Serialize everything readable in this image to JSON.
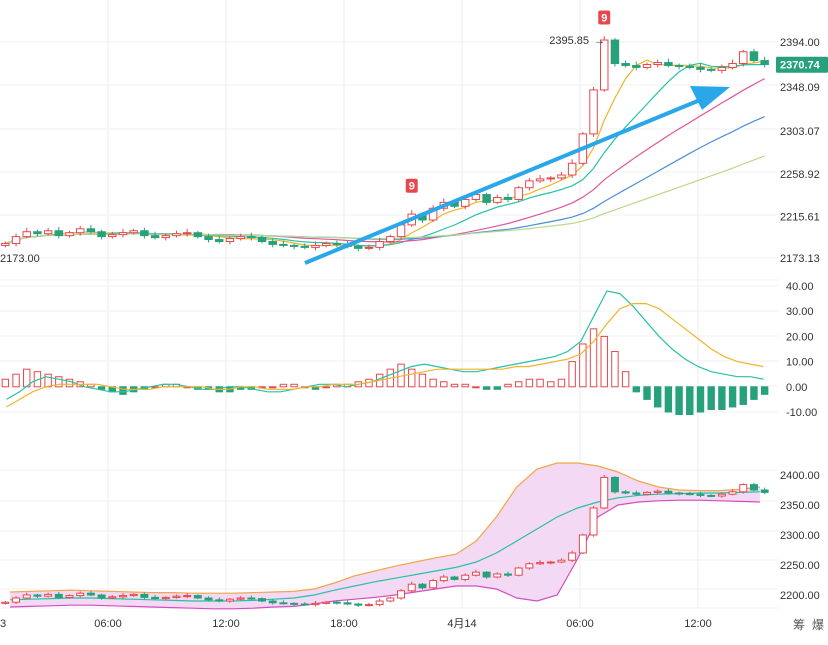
{
  "chart_data": [
    {
      "panel": "main",
      "type": "candlestick",
      "y_axis_ticks": [
        "2394.00",
        "2348.09",
        "2303.07",
        "2258.92",
        "2215.61",
        "2173.13"
      ],
      "y_axis_values": [
        2394.0,
        2348.09,
        2303.07,
        2258.92,
        2215.61,
        2173.13
      ],
      "current_price": "2370.74",
      "current_price_color": "#26a17b",
      "high_annotation": "2395.85",
      "low_annotation": "2173.00",
      "signal_markers": [
        "9",
        "9"
      ],
      "signal_color": "#e5484d",
      "trend_arrow_color": "#29a7e8",
      "up_color": "#e5484d",
      "down_color": "#26a17b",
      "ma_colors": [
        "#f0b429",
        "#26c2a5",
        "#e0559b",
        "#4a90d9",
        "#b9d98c"
      ],
      "close_series": [
        2188,
        2195,
        2200,
        2198,
        2201,
        2196,
        2199,
        2203,
        2200,
        2195,
        2197,
        2199,
        2201,
        2196,
        2194,
        2196,
        2198,
        2199,
        2195,
        2192,
        2190,
        2193,
        2195,
        2194,
        2190,
        2187,
        2186,
        2185,
        2184,
        2186,
        2188,
        2187,
        2185,
        2183,
        2184,
        2190,
        2195,
        2207,
        2218,
        2212,
        2224,
        2230,
        2226,
        2233,
        2238,
        2230,
        2235,
        2233,
        2245,
        2252,
        2254,
        2255,
        2258,
        2270,
        2300,
        2345,
        2396,
        2372,
        2370,
        2368,
        2371,
        2373,
        2370,
        2369,
        2368,
        2366,
        2365,
        2368,
        2372,
        2384,
        2375,
        2371
      ]
    },
    {
      "panel": "macd",
      "type": "histogram",
      "y_axis_ticks": [
        "40.00",
        "30.00",
        "20.00",
        "10.00",
        "0.00",
        "-10.00"
      ],
      "y_axis_values": [
        40,
        30,
        20,
        10,
        0,
        -10
      ],
      "line_colors": [
        "#26c2a5",
        "#f0b429"
      ],
      "histogram": [
        3,
        5,
        7,
        6,
        5,
        4,
        3,
        2,
        1,
        -1,
        -2,
        -3,
        -2,
        -1,
        0,
        1,
        1,
        0,
        -1,
        -1,
        -2,
        -2,
        -1,
        -1,
        0,
        0,
        1,
        1,
        0,
        -1,
        0,
        1,
        1,
        2,
        3,
        5,
        7,
        9,
        7,
        5,
        3,
        2,
        1,
        1,
        0,
        -1,
        -1,
        1,
        2,
        3,
        3,
        2,
        3,
        10,
        17,
        23,
        20,
        14,
        6,
        -2,
        -5,
        -8,
        -10,
        -11,
        -11,
        -10,
        -9,
        -9,
        -8,
        -7,
        -5,
        -3
      ],
      "dif_line": [
        -5,
        -2,
        2,
        4,
        3,
        2,
        0,
        -1,
        -2,
        -2,
        -1,
        0,
        1,
        1,
        0,
        -1,
        -1,
        0,
        0,
        -1,
        -2,
        -2,
        -1,
        0,
        1,
        1,
        0,
        1,
        2,
        4,
        6,
        8,
        9,
        8,
        7,
        6,
        6,
        7,
        8,
        9,
        10,
        11,
        12,
        14,
        18,
        28,
        38,
        37,
        32,
        26,
        20,
        15,
        11,
        8,
        6,
        5,
        4,
        4,
        3
      ],
      "dea_line": [
        -8,
        -5,
        -2,
        0,
        1,
        1,
        1,
        1,
        0,
        -1,
        -1,
        -1,
        0,
        0,
        0,
        0,
        -1,
        -1,
        0,
        0,
        -1,
        -1,
        -1,
        0,
        0,
        1,
        1,
        1,
        2,
        3,
        4,
        5,
        6,
        7,
        7,
        7,
        7,
        7,
        7,
        8,
        8,
        9,
        10,
        11,
        13,
        18,
        25,
        31,
        33,
        33,
        31,
        27,
        23,
        19,
        15,
        12,
        10,
        9,
        8
      ]
    },
    {
      "panel": "bollinger",
      "type": "candlestick",
      "y_axis_ticks": [
        "2400.00",
        "2350.00",
        "2300.00",
        "2250.00",
        "2200.00"
      ],
      "y_axis_values": [
        2400,
        2350,
        2300,
        2250,
        2200
      ],
      "band_fill": "#f3d9f3",
      "band_line_colors": [
        "#f0a64a",
        "#d24fc0",
        "#26c2a5"
      ],
      "upper_band": [
        2205,
        2206,
        2207,
        2208,
        2207,
        2206,
        2205,
        2204,
        2204,
        2203,
        2203,
        2203,
        2204,
        2205,
        2206,
        2210,
        2220,
        2232,
        2240,
        2248,
        2255,
        2262,
        2268,
        2290,
        2330,
        2380,
        2410,
        2420,
        2420,
        2415,
        2405,
        2390,
        2380,
        2375,
        2374,
        2374,
        2376,
        2380
      ],
      "middle_band": [
        2192,
        2193,
        2194,
        2195,
        2195,
        2194,
        2193,
        2192,
        2191,
        2190,
        2190,
        2190,
        2191,
        2193,
        2195,
        2200,
        2208,
        2215,
        2222,
        2228,
        2234,
        2240,
        2246,
        2255,
        2270,
        2290,
        2310,
        2330,
        2345,
        2355,
        2362,
        2366,
        2368,
        2369,
        2370,
        2370,
        2371,
        2372
      ],
      "lower_band": [
        2180,
        2181,
        2182,
        2183,
        2183,
        2182,
        2181,
        2180,
        2179,
        2178,
        2177,
        2177,
        2178,
        2180,
        2181,
        2185,
        2190,
        2193,
        2196,
        2200,
        2205,
        2210,
        2215,
        2215,
        2210,
        2195,
        2190,
        2200,
        2260,
        2330,
        2350,
        2355,
        2357,
        2358,
        2358,
        2357,
        2356,
        2355
      ]
    }
  ],
  "x_axis": {
    "labels": [
      "3",
      "06:00",
      "12:00",
      "18:00",
      "4月14",
      "06:00",
      "12:00"
    ]
  },
  "corner_buttons": {
    "left": "筹",
    "right": "爆"
  }
}
